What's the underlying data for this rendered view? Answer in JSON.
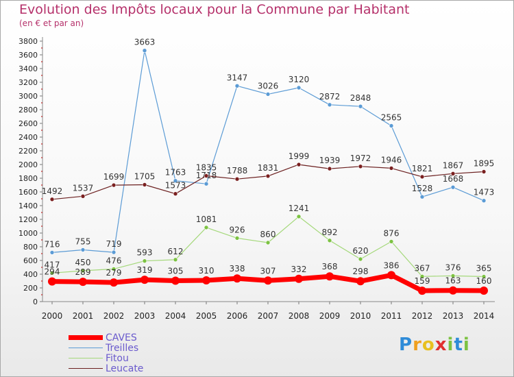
{
  "header": {
    "title": "Evolution des Impôts locaux pour la Commune par Habitant",
    "subtitle": "(en € et par an)"
  },
  "chart_data": {
    "type": "line",
    "title": "Evolution des Impôts locaux pour la Commune par Habitant",
    "subtitle": "(en € et par an)",
    "xlabel": "",
    "ylabel": "",
    "ylim": [
      0,
      3800
    ],
    "ytick_step": 200,
    "grid": false,
    "legend_position": "bottom-left",
    "categories": [
      "2000",
      "2001",
      "2002",
      "2003",
      "2004",
      "2005",
      "2006",
      "2007",
      "2008",
      "2009",
      "2010",
      "2011",
      "2012",
      "2013",
      "2014"
    ],
    "series": [
      {
        "name": "Treilles",
        "color": "#5b9bd5",
        "line_width": 1.2,
        "marker_color": "#5b9bd5",
        "values": [
          716,
          755,
          719,
          3663,
          1763,
          1718,
          3147,
          3026,
          3120,
          2872,
          2848,
          2565,
          1528,
          1668,
          1473
        ],
        "labels": [
          "716",
          "755",
          "719",
          "3663",
          "1763",
          "1718",
          "3147",
          "3026",
          "3120",
          "2872",
          "2848",
          "2565",
          "1528",
          "1668",
          "1473"
        ]
      },
      {
        "name": "Leucate",
        "color": "#6b1f1f",
        "line_width": 1.2,
        "marker_color": "#7a2020",
        "values": [
          1492,
          1537,
          1699,
          1705,
          1573,
          1835,
          1788,
          1831,
          1999,
          1939,
          1972,
          1946,
          1821,
          1867,
          1895
        ],
        "labels": [
          "1492",
          "1537",
          "1699",
          "1705",
          "1573",
          "1835",
          "1788",
          "1831",
          "1999",
          "1939",
          "1972",
          "1946",
          "1821",
          "1867",
          "1895"
        ]
      },
      {
        "name": "Fitou",
        "color": "#a4d87a",
        "line_width": 1.2,
        "marker_color": "#7cc242",
        "values": [
          417,
          450,
          476,
          593,
          612,
          1081,
          926,
          860,
          1241,
          892,
          620,
          876,
          367,
          376,
          365
        ],
        "labels": [
          "417",
          "450",
          "476",
          "593",
          "612",
          "1081",
          "926",
          "860",
          "1241",
          "892",
          "620",
          "876",
          "367",
          "376",
          "365"
        ]
      },
      {
        "name": "CAVES",
        "color": "#ff0000",
        "line_width": 7,
        "marker_color": "#ff0000",
        "values": [
          294,
          289,
          279,
          319,
          305,
          310,
          338,
          307,
          332,
          368,
          298,
          386,
          159,
          163,
          160
        ],
        "labels": [
          "294",
          "289",
          "279",
          "319",
          "305",
          "310",
          "338",
          "307",
          "332",
          "368",
          "298",
          "386",
          "159",
          "163",
          "160"
        ]
      }
    ],
    "legend": [
      "CAVES",
      "Treilles",
      "Fitou",
      "Leucate"
    ]
  },
  "legend_items": [
    {
      "label": "CAVES",
      "color": "#ff0000"
    },
    {
      "label": "Treilles",
      "color": "#5b9bd5"
    },
    {
      "label": "Fitou",
      "color": "#a4d87a"
    },
    {
      "label": "Leucate",
      "color": "#6b1f1f"
    }
  ],
  "logo": {
    "letters": [
      {
        "ch": "P",
        "color": "#2e8bd8"
      },
      {
        "ch": "r",
        "color": "#f0a020"
      },
      {
        "ch": "o",
        "color": "#e8c020"
      },
      {
        "ch": "x",
        "color": "#e03030"
      },
      {
        "ch": "i",
        "color": "#7cc242"
      },
      {
        "ch": "t",
        "color": "#2e8bd8"
      },
      {
        "ch": "i",
        "color": "#7cc242"
      }
    ]
  }
}
